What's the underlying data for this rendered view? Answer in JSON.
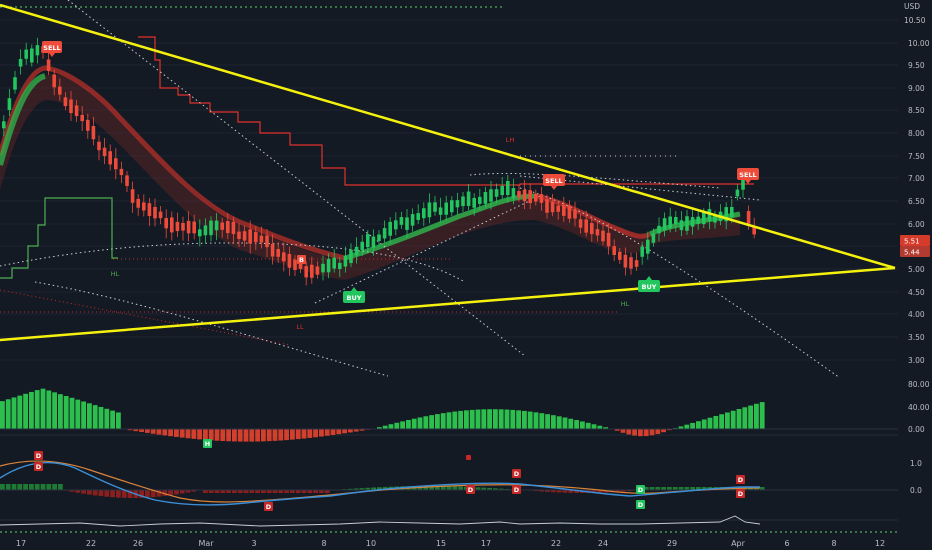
{
  "colors": {
    "background": "#141a23",
    "bull": "#22c55e",
    "bear": "#ef4b3a",
    "trendline": "#f5f10e",
    "resistance": "#e0312b",
    "support": "#4caf50",
    "signal_sell": "#ef4b3a",
    "signal_buy": "#22c55e"
  },
  "price_axis": {
    "currency": "USD",
    "ticks": [
      "10.50",
      "10.00",
      "9.50",
      "9.00",
      "8.50",
      "8.00",
      "7.50",
      "7.00",
      "6.50",
      "6.00",
      "5.50",
      "5.00",
      "4.50",
      "4.00",
      "3.50",
      "3.00"
    ],
    "last_price_tag": "5.51",
    "close_price_tag": "5.44"
  },
  "oscillator_axis": {
    "ticks": [
      "80.00",
      "40.00",
      "0.00"
    ]
  },
  "momentum_axis": {
    "ticks": [
      "1.0",
      "0.0"
    ]
  },
  "time_axis": {
    "labels": [
      "17",
      "22",
      "26",
      "Mar",
      "3",
      "8",
      "10",
      "15",
      "17",
      "22",
      "24",
      "29",
      "Apr",
      "6",
      "8",
      "12"
    ]
  },
  "signals": {
    "sell_1": "SELL",
    "sell_2": "SELL",
    "sell_3": "SELL",
    "buy_1": "BUY",
    "buy_2": "BUY"
  },
  "pivots": {
    "hl_1": "HL",
    "ll": "LL",
    "lh": "LH",
    "hl_2": "HL"
  },
  "letter_markers": {
    "h": "H",
    "b": "B",
    "d1": "D",
    "d2": "D",
    "d3": "D",
    "d4": "D",
    "d5": "D",
    "d6": "D",
    "d7": "D",
    "d8": "D",
    "d9": "D",
    "d10": "D",
    "d11": "D"
  }
}
